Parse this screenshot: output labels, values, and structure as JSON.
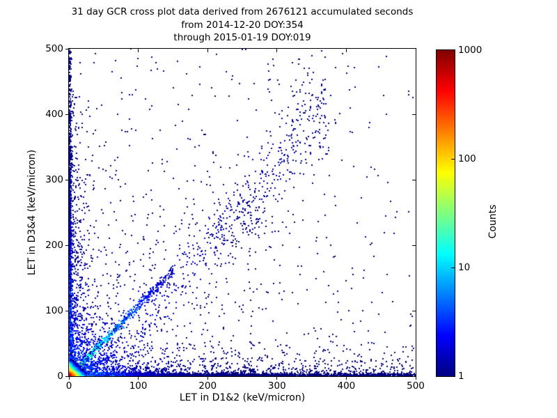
{
  "chart_data": {
    "type": "scatter",
    "subtype": "2d-histogram-density-crossplot",
    "title": "31 day GCR cross plot data derived from 2676121 accumulated seconds",
    "subtitle": [
      "from 2014-12-20 DOY:354",
      "through 2015-01-19 DOY:019"
    ],
    "period": {
      "days": 31,
      "accumulated_seconds": 2676121,
      "start_date": "2014-12-20",
      "start_doy": 354,
      "end_date": "2015-01-19",
      "end_doy": "019"
    },
    "xlabel": "LET in D1&2 (keV/micron)",
    "ylabel": "LET in D3&4 (keV/micron)",
    "xlim": [
      0,
      500
    ],
    "ylim": [
      0,
      500
    ],
    "xticks": [
      0,
      100,
      200,
      300,
      400,
      500
    ],
    "yticks": [
      0,
      100,
      200,
      300,
      400,
      500
    ],
    "grid": false,
    "background_color": "#ffffff",
    "point_color_min": "#00007f",
    "colorbar": {
      "label": "Counts",
      "scale": "log",
      "min": 1,
      "max": 1000,
      "ticks": [
        1,
        10,
        100,
        1000
      ],
      "colormap": "jet",
      "gradient_stops": [
        {
          "pos": 0.0,
          "color": "#000080"
        },
        {
          "pos": 0.125,
          "color": "#0000ff"
        },
        {
          "pos": 0.375,
          "color": "#00ffff"
        },
        {
          "pos": 0.625,
          "color": "#ffff00"
        },
        {
          "pos": 0.875,
          "color": "#ff0000"
        },
        {
          "pos": 1.0,
          "color": "#800000"
        }
      ]
    },
    "seed": 20150119,
    "density_features": [
      {
        "kind": "band",
        "axis": "x",
        "sigma": 2.2,
        "length": 500,
        "fall": 120,
        "uniform_mix": 0.45,
        "n": 3000,
        "count0": 45,
        "count_fall": 28,
        "count_base": 1
      },
      {
        "kind": "band",
        "axis": "x",
        "sigma": 9,
        "length": 500,
        "fall": 150,
        "uniform_mix": 0.4,
        "n": 650,
        "count0": 6,
        "count_fall": 40,
        "count_base": 1
      },
      {
        "kind": "band",
        "axis": "x",
        "sigma": 25,
        "length": 500,
        "fall": 200,
        "uniform_mix": 0.5,
        "n": 380,
        "count0": 3,
        "count_fall": 60,
        "count_base": 1
      },
      {
        "kind": "band",
        "axis": "y",
        "sigma": 1.8,
        "length": 500,
        "fall": 140,
        "uniform_mix": 0.25,
        "n": 1500,
        "count0": 25,
        "count_fall": 60,
        "count_base": 1
      },
      {
        "kind": "band",
        "axis": "y",
        "sigma": 8,
        "length": 430,
        "fall": 130,
        "uniform_mix": 0.25,
        "n": 420,
        "count0": 4,
        "count_fall": 60,
        "count_base": 1
      },
      {
        "kind": "band",
        "axis": "y",
        "sigma": 20,
        "length": 320,
        "fall": 150,
        "uniform_mix": 0.3,
        "n": 240,
        "count0": 2,
        "count_fall": 80,
        "count_base": 1
      },
      {
        "kind": "line",
        "slope": 1.07,
        "intercept": 0,
        "xmin": 2,
        "xmax": 150,
        "sigma": 2.0,
        "sigma_grow": 0.02,
        "fall": 55,
        "uniform_mix": 0.45,
        "n": 680,
        "count0": 30,
        "count_fall": 38,
        "count_base": 1
      },
      {
        "kind": "line",
        "slope": 0.5,
        "intercept": 0,
        "xmin": 4,
        "xmax": 70,
        "sigma": 1.6,
        "sigma_grow": 0.02,
        "fall": 40,
        "uniform_mix": 0.5,
        "n": 120,
        "count0": 6,
        "count_fall": 30,
        "count_base": 1
      },
      {
        "kind": "line",
        "slope": 1.2,
        "intercept": -40,
        "xmin": 100,
        "xmax": 375,
        "sigma": 20,
        "sigma_grow": 0.04,
        "fall": 1000,
        "uniform_mix": 1,
        "n": 380,
        "count0": 1,
        "count_fall": 200,
        "count_base": 1
      },
      {
        "kind": "blob",
        "cx": 250,
        "cy": 240,
        "sx": 28,
        "sy": 32,
        "n": 130,
        "count_base": 1
      },
      {
        "kind": "blob",
        "cx": 340,
        "cy": 420,
        "sx": 30,
        "sy": 45,
        "n": 85,
        "count_base": 1
      },
      {
        "kind": "fan",
        "n": 900,
        "r_mean": 70,
        "count0": 4,
        "count_fall": 50,
        "count_base": 1
      },
      {
        "kind": "scatter",
        "n": 620,
        "xfall": 260,
        "yfall": 260,
        "count_base": 1
      },
      {
        "kind": "scatter",
        "n": 60,
        "xfall": 0,
        "yfall": 0,
        "count_base": 1
      },
      {
        "kind": "hotspot",
        "x": 0,
        "y": 0,
        "amplitude": 900,
        "sx": 4.2,
        "sy": 4.2,
        "cells": 13,
        "cell_units": 2
      }
    ]
  }
}
